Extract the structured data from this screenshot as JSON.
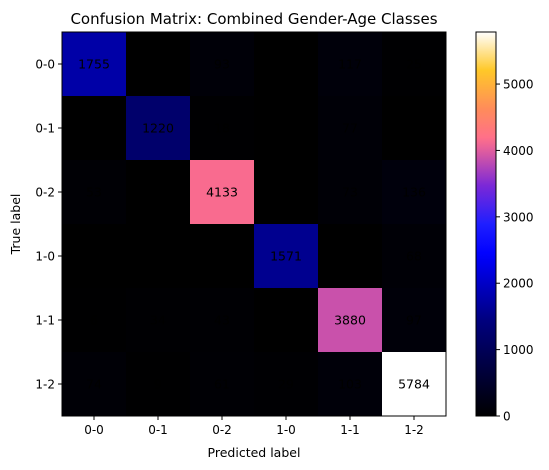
{
  "chart_data": {
    "type": "heatmap",
    "title": "Confusion Matrix: Combined Gender-Age Classes",
    "xlabel": "Predicted label",
    "ylabel": "True label",
    "x_categories": [
      "0-0",
      "0-1",
      "0-2",
      "1-0",
      "1-1",
      "1-2"
    ],
    "y_categories": [
      "0-0",
      "0-1",
      "0-2",
      "1-0",
      "1-1",
      "1-2"
    ],
    "values": [
      [
        1755,
        0,
        93,
        0,
        117,
        25
      ],
      [
        1,
        1220,
        18,
        0,
        77,
        4
      ],
      [
        53,
        4,
        4133,
        1,
        73,
        136
      ],
      [
        0,
        0,
        1,
        1571,
        0,
        68
      ],
      [
        6,
        34,
        43,
        0,
        3880,
        97
      ],
      [
        74,
        9,
        61,
        29,
        103,
        5784
      ]
    ],
    "value_range": [
      0,
      5784
    ],
    "colormap": "gnuplot2",
    "colorbar": {
      "ticks": [
        0,
        1000,
        2000,
        3000,
        4000,
        5000
      ],
      "tick_labels": [
        "0",
        "1000",
        "2000",
        "3000",
        "4000",
        "5000"
      ]
    },
    "label_color": "#ffffff",
    "grid": false,
    "legend": "colorbar-right"
  }
}
